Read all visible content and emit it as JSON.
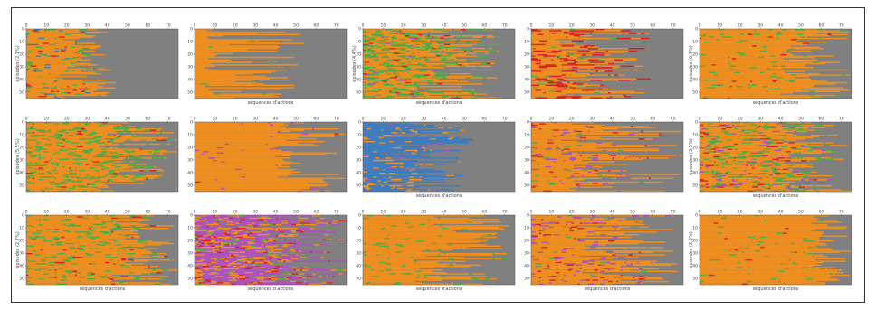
{
  "colors": {
    "background": "#808080",
    "orange": "#f28e1c",
    "green": "#4fae44",
    "red": "#e02020",
    "blue": "#3b7dc0",
    "purple": "#b050c0"
  },
  "x_ticks": [
    "0",
    "10",
    "20",
    "30",
    "40",
    "50",
    "60",
    "70"
  ],
  "y_ticks": [
    "0",
    "10",
    "20",
    "30",
    "40",
    "50"
  ],
  "chart_data": [
    {
      "type": "heatmap",
      "xlabel": "",
      "ylabel": "épisodes (2.1%)",
      "xlim": [
        0,
        75
      ],
      "ylim": [
        0,
        55
      ],
      "palette": [
        "orange",
        "green",
        "red",
        "blue"
      ],
      "weights": [
        0.78,
        0.12,
        0.05,
        0.05
      ],
      "min_len": 15,
      "max_len": 45
    },
    {
      "type": "heatmap",
      "xlabel": "séquences d'actions",
      "ylabel": "",
      "xlim": [
        0,
        75
      ],
      "ylim": [
        0,
        55
      ],
      "palette": [
        "orange",
        "green"
      ],
      "weights": [
        0.98,
        0.02
      ],
      "min_len": 5,
      "max_len": 55
    },
    {
      "type": "heatmap",
      "xlabel": "séquences d'actions",
      "ylabel": "épisodes (4.4%)",
      "xlim": [
        0,
        75
      ],
      "ylim": [
        0,
        55
      ],
      "palette": [
        "orange",
        "green",
        "red",
        "purple"
      ],
      "weights": [
        0.5,
        0.44,
        0.03,
        0.03
      ],
      "min_len": 25,
      "max_len": 70
    },
    {
      "type": "heatmap",
      "xlabel": "",
      "ylabel": "",
      "xlim": [
        0,
        75
      ],
      "ylim": [
        0,
        55
      ],
      "palette": [
        "red",
        "orange",
        "green"
      ],
      "weights": [
        0.15,
        0.8,
        0.05
      ],
      "min_len": 10,
      "max_len": 60
    },
    {
      "type": "heatmap",
      "xlabel": "séquences d'actions",
      "ylabel": "épisodes (6.7%)",
      "xlim": [
        0,
        75
      ],
      "ylim": [
        0,
        55
      ],
      "palette": [
        "orange",
        "green",
        "red"
      ],
      "weights": [
        0.88,
        0.1,
        0.02
      ],
      "min_len": 40,
      "max_len": 75
    },
    {
      "type": "heatmap",
      "xlabel": "",
      "ylabel": "épisodes (5.5%)",
      "xlim": [
        0,
        75
      ],
      "ylim": [
        0,
        55
      ],
      "palette": [
        "orange",
        "green",
        "red"
      ],
      "weights": [
        0.6,
        0.37,
        0.03
      ],
      "min_len": 35,
      "max_len": 75
    },
    {
      "type": "heatmap",
      "xlabel": "",
      "ylabel": "",
      "xlim": [
        0,
        75
      ],
      "ylim": [
        0,
        55
      ],
      "palette": [
        "orange",
        "purple",
        "red"
      ],
      "weights": [
        0.96,
        0.03,
        0.01
      ],
      "min_len": 40,
      "max_len": 75
    },
    {
      "type": "heatmap",
      "xlabel": "séquences d'actions",
      "ylabel": "",
      "xlim": [
        0,
        75
      ],
      "ylim": [
        0,
        55
      ],
      "palette": [
        "blue",
        "orange",
        "purple"
      ],
      "weights": [
        0.75,
        0.2,
        0.05
      ],
      "min_len": 5,
      "max_len": 55
    },
    {
      "type": "heatmap",
      "xlabel": "",
      "ylabel": "",
      "xlim": [
        0,
        75
      ],
      "ylim": [
        0,
        55
      ],
      "palette": [
        "orange",
        "purple",
        "red",
        "green"
      ],
      "weights": [
        0.8,
        0.1,
        0.05,
        0.05
      ],
      "min_len": 15,
      "max_len": 75
    },
    {
      "type": "heatmap",
      "xlabel": "séquences d'actions",
      "ylabel": "épisodes (3.5%)",
      "xlim": [
        0,
        75
      ],
      "ylim": [
        0,
        55
      ],
      "palette": [
        "orange",
        "green",
        "purple",
        "red"
      ],
      "weights": [
        0.55,
        0.3,
        0.1,
        0.05
      ],
      "min_len": 40,
      "max_len": 75
    },
    {
      "type": "heatmap",
      "xlabel": "séquences d'actions",
      "ylabel": "épisodes (2.7%)",
      "xlim": [
        0,
        75
      ],
      "ylim": [
        0,
        55
      ],
      "palette": [
        "orange",
        "green",
        "red"
      ],
      "weights": [
        0.75,
        0.22,
        0.03
      ],
      "min_len": 40,
      "max_len": 75
    },
    {
      "type": "heatmap",
      "xlabel": "séquences d'actions",
      "ylabel": "",
      "xlim": [
        0,
        75
      ],
      "ylim": [
        0,
        55
      ],
      "palette": [
        "purple",
        "orange",
        "green",
        "red"
      ],
      "weights": [
        0.45,
        0.35,
        0.1,
        0.1
      ],
      "min_len": 30,
      "max_len": 75
    },
    {
      "type": "heatmap",
      "xlabel": "séquences d'actions",
      "ylabel": "",
      "xlim": [
        0,
        75
      ],
      "ylim": [
        0,
        55
      ],
      "palette": [
        "orange",
        "green"
      ],
      "weights": [
        0.9,
        0.1
      ],
      "min_len": 25,
      "max_len": 75
    },
    {
      "type": "heatmap",
      "xlabel": "séquences d'actions",
      "ylabel": "",
      "xlim": [
        0,
        75
      ],
      "ylim": [
        0,
        55
      ],
      "palette": [
        "orange",
        "purple",
        "red",
        "green"
      ],
      "weights": [
        0.8,
        0.12,
        0.05,
        0.03
      ],
      "min_len": 20,
      "max_len": 75
    },
    {
      "type": "heatmap",
      "xlabel": "séquences d'actions",
      "ylabel": "épisodes (2.3%)",
      "xlim": [
        0,
        75
      ],
      "ylim": [
        0,
        55
      ],
      "palette": [
        "orange",
        "green",
        "red"
      ],
      "weights": [
        0.94,
        0.05,
        0.01
      ],
      "min_len": 55,
      "max_len": 75
    }
  ]
}
